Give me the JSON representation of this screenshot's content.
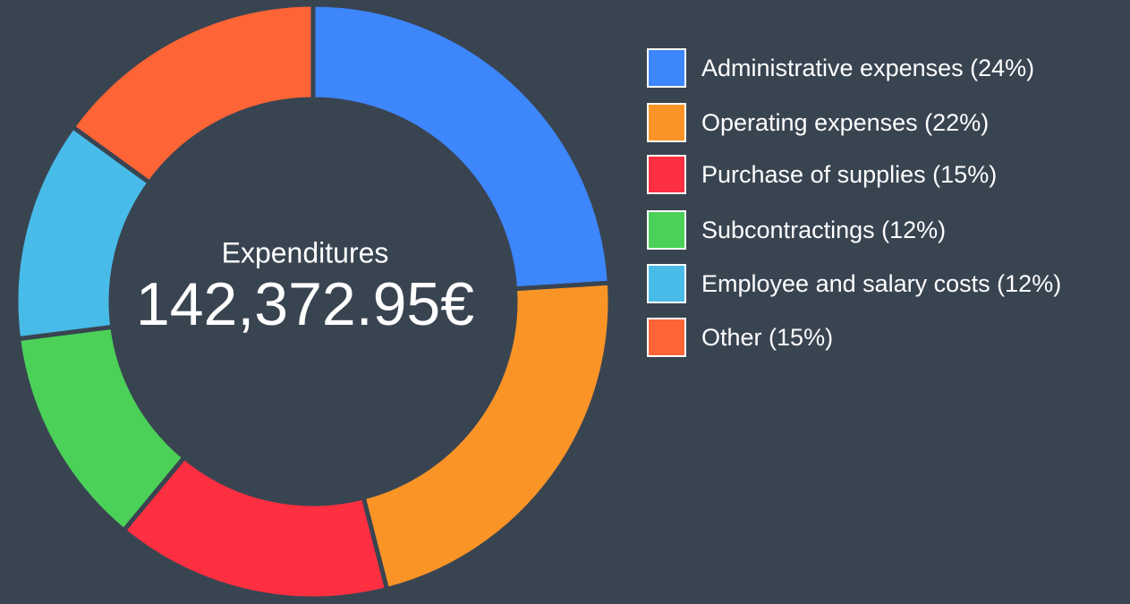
{
  "chart_data": {
    "type": "donut",
    "center_label": "Expenditures",
    "center_value": "142,372.95€",
    "categories": [
      "Administrative expenses",
      "Operating expenses",
      "Purchase of supplies",
      "Subcontractings",
      "Employee and salary costs",
      "Other"
    ],
    "values": [
      24,
      22,
      15,
      12,
      12,
      15
    ],
    "value_labels": [
      "(24%)",
      "(22%)",
      "(15%)",
      "(12%)",
      "(12%)",
      "(15%)"
    ],
    "colors": [
      "#3d86fc",
      "#fb9426",
      "#fd2f40",
      "#4bd158",
      "#48bbe8",
      "#fd6436"
    ],
    "legend": "right"
  }
}
